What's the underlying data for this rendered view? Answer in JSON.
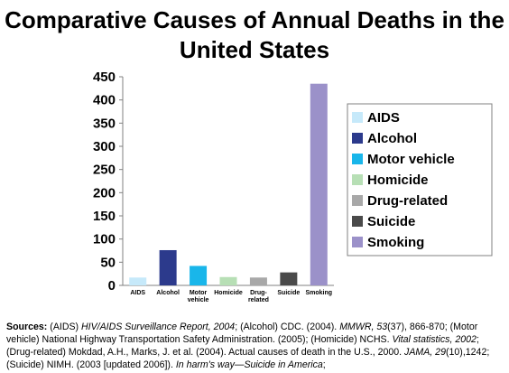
{
  "title": "Comparative Causes of Annual Deaths in the United States",
  "chart_data": {
    "type": "bar",
    "title": "Comparative Causes of Annual Deaths in the United States",
    "xlabel": "",
    "ylabel": "",
    "ylim": [
      0,
      450
    ],
    "yticks": [
      0,
      50,
      100,
      150,
      200,
      250,
      300,
      350,
      400,
      450
    ],
    "grid": false,
    "legend": "right",
    "categories": [
      "AIDS",
      "Alcohol",
      "Motor vehicle",
      "Homicide",
      "Drug-related",
      "Suicide",
      "Smoking"
    ],
    "category_label_lines": [
      [
        "AIDS"
      ],
      [
        "Alcohol"
      ],
      [
        "Motor",
        "vehicle"
      ],
      [
        "Homicide"
      ],
      [
        "Drug-",
        "related"
      ],
      [
        "Suicide"
      ],
      [
        "Smoking"
      ]
    ],
    "values": [
      17,
      76,
      42,
      18,
      17,
      28,
      435
    ],
    "colors": [
      "#c6e9fa",
      "#2c3a8c",
      "#19b6ea",
      "#b7dfb5",
      "#a8a8a8",
      "#4a4a4a",
      "#9b91c9"
    ],
    "legend_entries": [
      "AIDS",
      "Alcohol",
      "Motor vehicle",
      "Homicide",
      "Drug-related",
      "Suicide",
      "Smoking"
    ]
  },
  "sources": {
    "label": "Sources:",
    "t1": " (AIDS) ",
    "i1": "HIV/AIDS Surveillance Report, 2004",
    "t2": "; (Alcohol) CDC. (2004). ",
    "i2": "MMWR, 53",
    "t3": "(37), 866-870; (Motor vehicle) National Highway Transportation Safety Administration. (2005); (Homicide) NCHS. ",
    "i3": "Vital statistics, 2002",
    "t4": "; (Drug-related) Mokdad, A.H., Marks, J. et al. (2004). Actual causes of death in the U.S., 2000. ",
    "i4": "JAMA, 29",
    "t5": "(10),1242; (Suicide) NIMH. (2003 [updated 2006]). ",
    "i5": "In harm's way—Suicide in America",
    "t6": ";"
  }
}
